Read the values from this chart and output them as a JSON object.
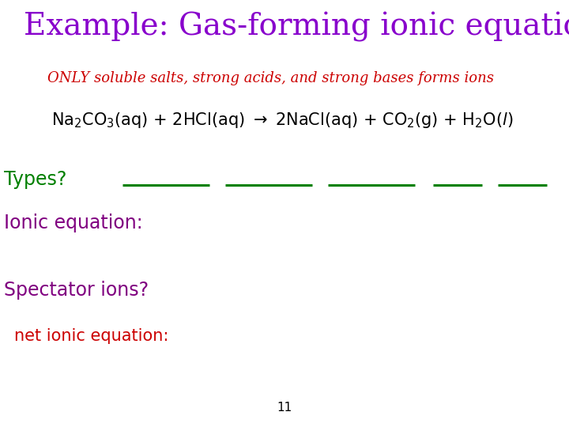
{
  "title": "Example: Gas-forming ionic equation",
  "title_color": "#8800cc",
  "title_fontsize": 28,
  "subtitle": "ONLY soluble salts, strong acids, and strong bases forms ions",
  "subtitle_color": "#cc0000",
  "subtitle_fontsize": 13,
  "equation_color": "#000000",
  "equation_fontsize": 15,
  "types_label": "Types?",
  "types_color": "#008000",
  "types_fontsize": 17,
  "underline_color": "#008000",
  "ionic_label": "Ionic equation:",
  "ionic_color": "#800080",
  "ionic_fontsize": 17,
  "spectator_label": "Spectator ions?",
  "spectator_color": "#800080",
  "spectator_fontsize": 17,
  "net_ionic_label": "net ionic equation:",
  "net_ionic_color": "#cc0000",
  "net_ionic_fontsize": 15,
  "page_number": "11",
  "page_number_color": "#000000",
  "page_number_fontsize": 11,
  "background_color": "#ffffff"
}
